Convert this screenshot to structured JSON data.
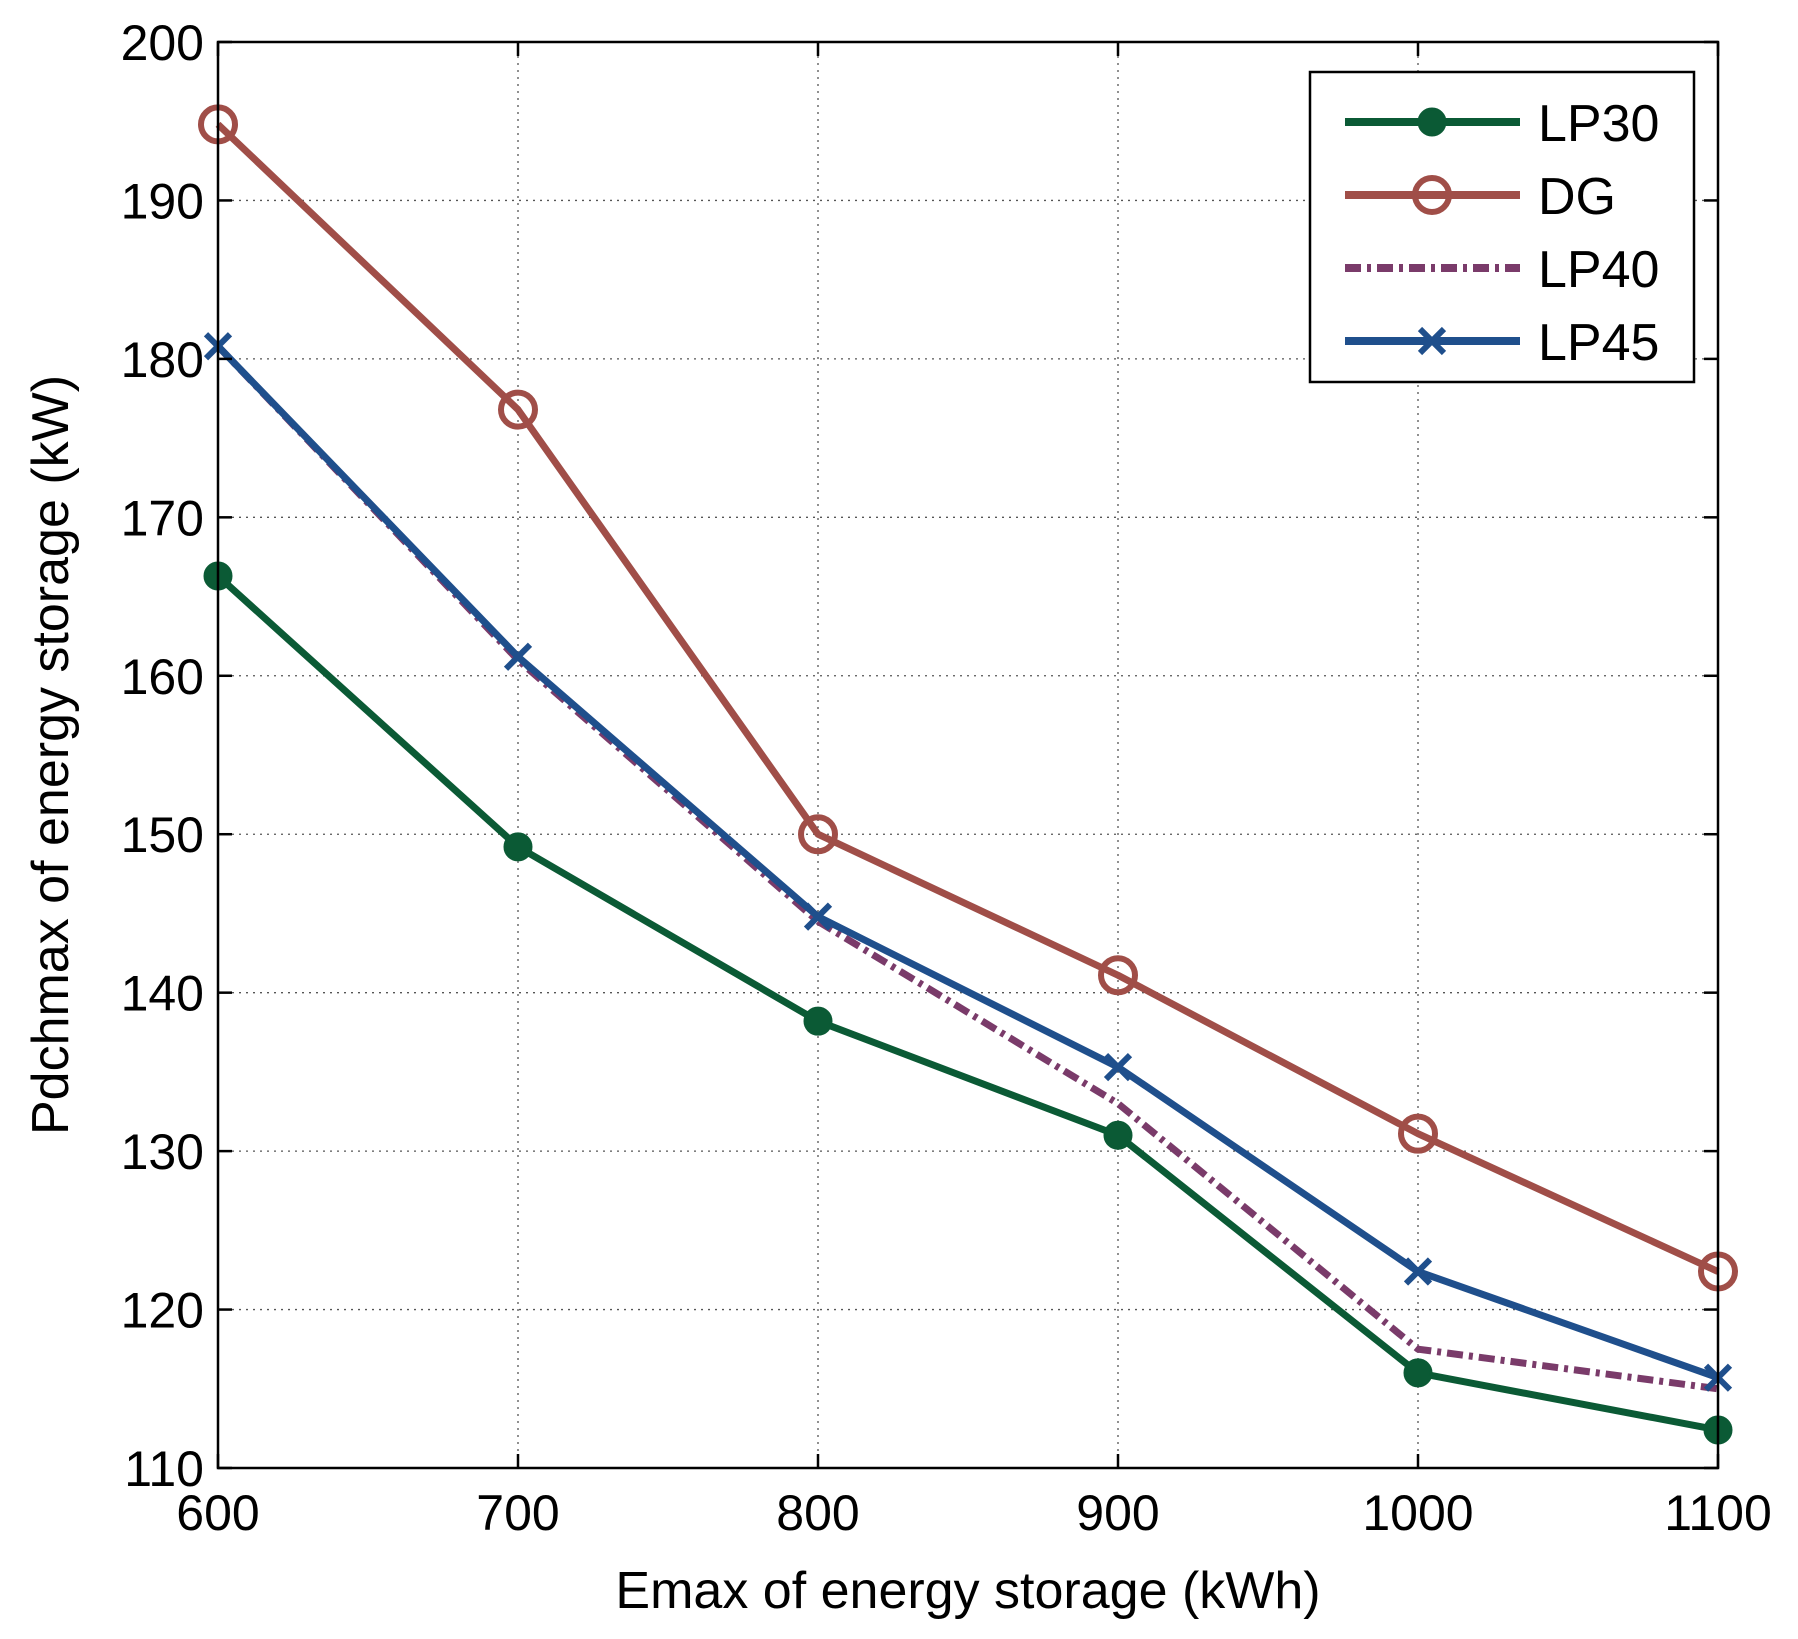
{
  "chart_data": {
    "type": "line",
    "title": "",
    "xlabel": "Emax of energy storage (kWh)",
    "ylabel": "Pdchmax of energy storage (kW)",
    "xlim": [
      600,
      1100
    ],
    "ylim": [
      110,
      200
    ],
    "xticks": [
      600,
      700,
      800,
      900,
      1000,
      1100
    ],
    "yticks": [
      110,
      120,
      130,
      140,
      150,
      160,
      170,
      180,
      190,
      200
    ],
    "grid": true,
    "legend_position": "top-right",
    "x": [
      600,
      700,
      800,
      900,
      1000,
      1100
    ],
    "series": [
      {
        "name": "LP30",
        "color": "#0b5a35",
        "marker": "filled-circle",
        "line_style": "solid",
        "values": [
          166.3,
          149.2,
          138.2,
          131.0,
          116.0,
          112.4
        ]
      },
      {
        "name": "DG",
        "color": "#a04e48",
        "marker": "open-circle",
        "line_style": "solid",
        "values": [
          194.8,
          176.8,
          150.0,
          141.1,
          131.1,
          122.4
        ]
      },
      {
        "name": "LP40",
        "color": "#7a3b6a",
        "marker": "none",
        "line_style": "dash-dot",
        "values": [
          180.8,
          161.0,
          144.5,
          133.0,
          117.5,
          115.0
        ]
      },
      {
        "name": "LP45",
        "color": "#1f4f8c",
        "marker": "x",
        "line_style": "solid",
        "values": [
          180.8,
          161.2,
          144.8,
          135.3,
          122.4,
          115.7
        ]
      }
    ]
  }
}
